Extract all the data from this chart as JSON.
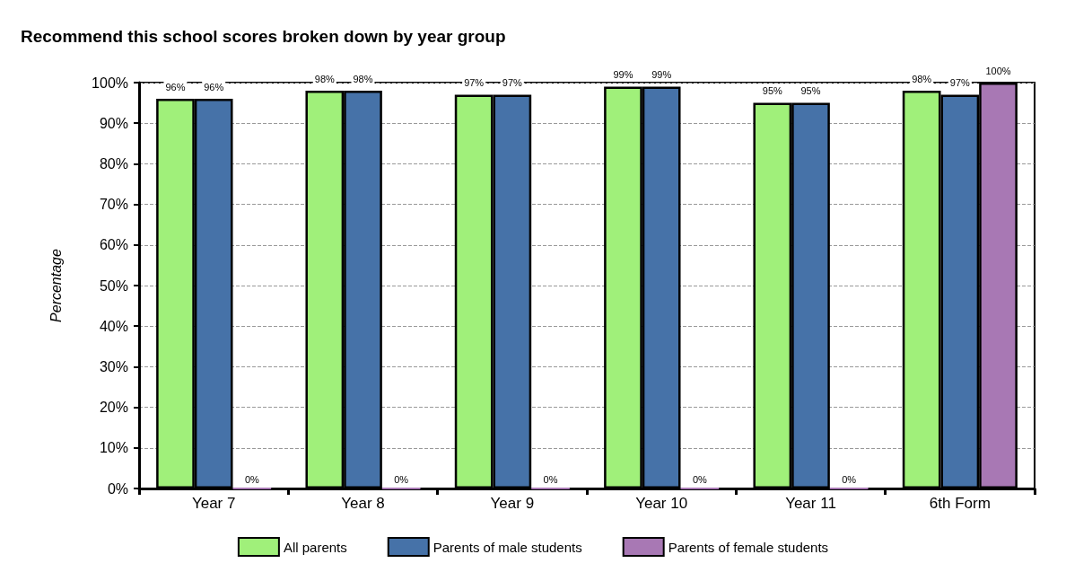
{
  "chart_data": {
    "type": "bar",
    "title": "Recommend this school scores broken down by year group",
    "ylabel": "Percentage",
    "categories": [
      "Year 7",
      "Year 8",
      "Year 9",
      "Year 10",
      "Year 11",
      "6th Form"
    ],
    "series": [
      {
        "name": "All parents",
        "color": "#a0f07a",
        "values": [
          96,
          98,
          97,
          99,
          95,
          98
        ],
        "value_labels": [
          "96%",
          "98%",
          "97%",
          "99%",
          "95%",
          "98%"
        ]
      },
      {
        "name": "Parents of male students",
        "color": "#4672a8",
        "values": [
          96,
          98,
          97,
          99,
          95,
          97
        ],
        "value_labels": [
          "96%",
          "98%",
          "97%",
          "99%",
          "95%",
          "97%"
        ]
      },
      {
        "name": "Parents of female students",
        "color": "#a878b4",
        "values": [
          0,
          0,
          0,
          0,
          0,
          100
        ],
        "value_labels": [
          "0%",
          "0%",
          "0%",
          "0%",
          "0%",
          "100%"
        ]
      }
    ],
    "ylim": [
      0,
      100
    ],
    "yticks": [
      {
        "value": 0,
        "label": "0%"
      },
      {
        "value": 10,
        "label": "10%"
      },
      {
        "value": 20,
        "label": "20%"
      },
      {
        "value": 30,
        "label": "30%"
      },
      {
        "value": 40,
        "label": "40%"
      },
      {
        "value": 50,
        "label": "50%"
      },
      {
        "value": 60,
        "label": "60%"
      },
      {
        "value": 70,
        "label": "70%"
      },
      {
        "value": 80,
        "label": "80%"
      },
      {
        "value": 90,
        "label": "90%"
      },
      {
        "value": 100,
        "label": "100%"
      }
    ],
    "grid": "y",
    "legend": "bottom"
  }
}
